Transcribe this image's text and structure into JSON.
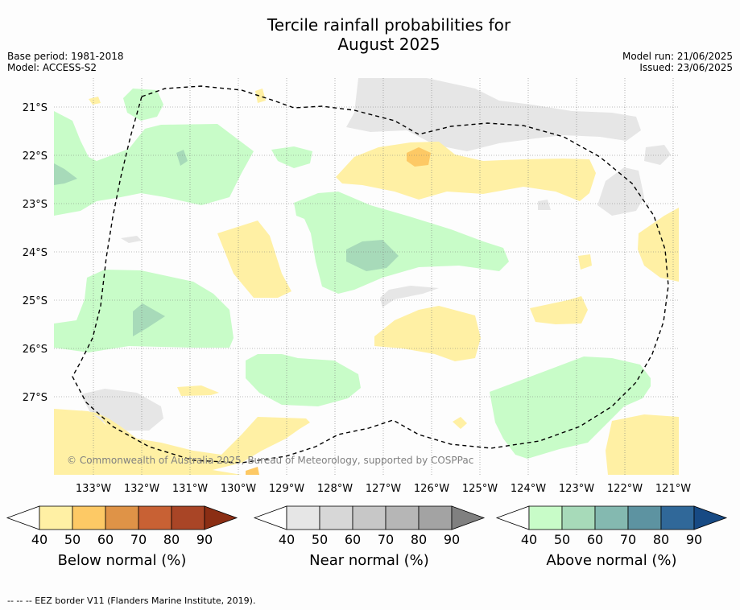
{
  "title_line1": "Tercile rainfall probabilities for",
  "title_line2": "August 2025",
  "base_period": "Base period: 1981-2018",
  "model": "Model: ACCESS-S2",
  "model_run": "Model run: 21/06/2025",
  "issued": "Issued: 23/06/2025",
  "copyright": "© Commonwealth of Australia 2025, Bureau of Meteorology, supported by COSPPac",
  "footer": "--  --  -- EEZ border V11 (Flanders Marine Institute, 2019).",
  "map": {
    "lon_labels": [
      "133°W",
      "132°W",
      "131°W",
      "130°W",
      "129°W",
      "128°W",
      "127°W",
      "126°W",
      "125°W",
      "124°W",
      "123°W",
      "122°W",
      "121°W"
    ],
    "lat_labels": [
      "21°S",
      "22°S",
      "23°S",
      "24°S",
      "25°S",
      "26°S",
      "27°S"
    ],
    "grid": true
  },
  "colorbars": [
    {
      "label": "Below normal (%)",
      "ticks": [
        "40",
        "50",
        "60",
        "70",
        "80",
        "90"
      ],
      "colors": [
        "#ffffff",
        "#fff0a4",
        "#fdc965",
        "#df9347",
        "#c86134",
        "#a94526",
        "#8b2e14"
      ]
    },
    {
      "label": "Near normal (%)",
      "ticks": [
        "40",
        "50",
        "60",
        "70",
        "80",
        "90"
      ],
      "colors": [
        "#ffffff",
        "#e6e6e6",
        "#d7d7d7",
        "#c7c7c7",
        "#b6b6b6",
        "#a3a3a3",
        "#808080"
      ]
    },
    {
      "label": "Above normal (%)",
      "ticks": [
        "40",
        "50",
        "60",
        "70",
        "80",
        "90"
      ],
      "colors": [
        "#ffffff",
        "#c8fcc8",
        "#a7dab9",
        "#84b9b0",
        "#5d93a1",
        "#306899",
        "#174a84"
      ]
    }
  ]
}
